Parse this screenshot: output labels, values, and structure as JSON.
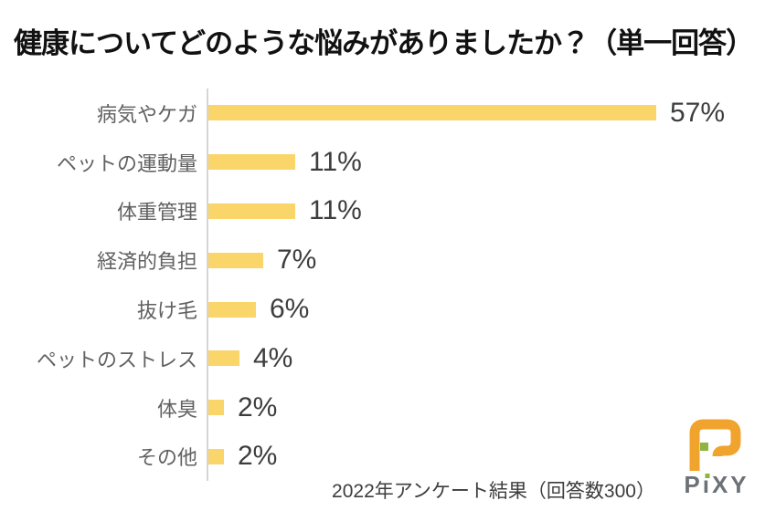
{
  "title": "健康についてどのような悩みがありましたか？（単一回答）",
  "chart_data": {
    "type": "bar",
    "orientation": "horizontal",
    "title": "健康についてどのような悩みがありましたか？（単一回答）",
    "categories": [
      "病気やケガ",
      "ペットの運動量",
      "体重管理",
      "経済的負担",
      "抜け毛",
      "ペットのストレス",
      "体臭",
      "その他"
    ],
    "values": [
      57,
      11,
      11,
      7,
      6,
      4,
      2,
      2
    ],
    "value_labels": [
      "57%",
      "11%",
      "11%",
      "7%",
      "6%",
      "4%",
      "2%",
      "2%"
    ],
    "unit": "%",
    "xlim": [
      0,
      70
    ],
    "grid": false,
    "legend": "none",
    "value_label_position": "outside-end",
    "bar_color": "#FAD56A",
    "axis_line_color": "#D6D6D6",
    "source_note": "2022年アンケート結果（回答数300）"
  },
  "footer": {
    "note": "2022年アンケート結果（回答数300）"
  },
  "logo": {
    "text": "PiXY",
    "mark_color": "#F0A42E",
    "accent_color": "#8CB43F",
    "text_color": "#6D7277"
  },
  "colors": {
    "title": "#111111",
    "category_label": "#616161",
    "value_label": "#3D3D3D",
    "footer": "#3D3D3D",
    "background": "#FFFFFF"
  }
}
